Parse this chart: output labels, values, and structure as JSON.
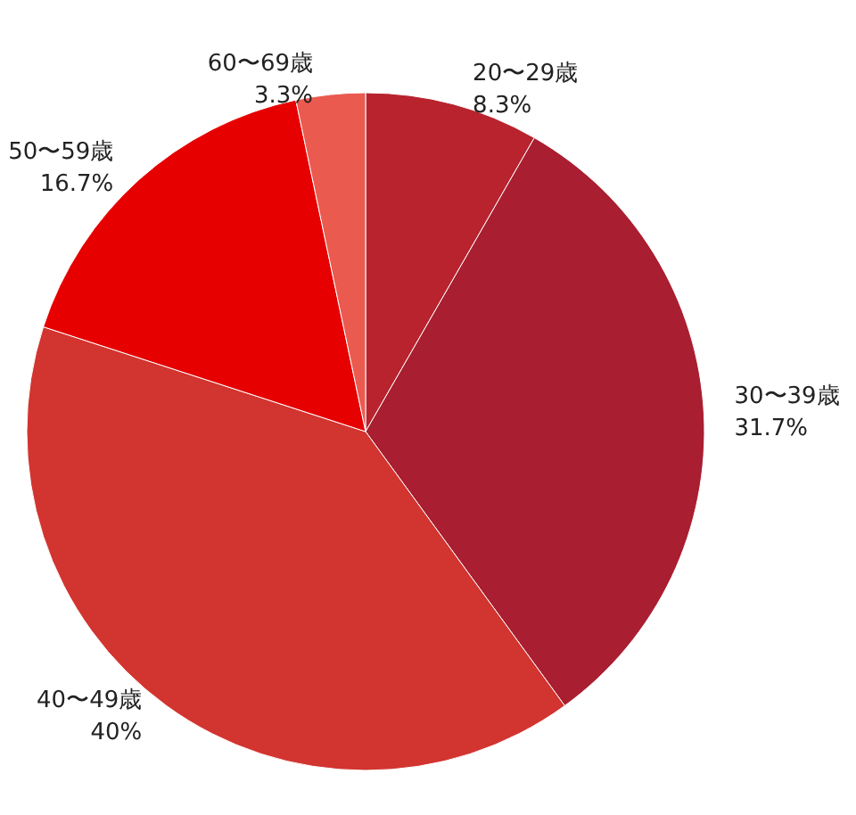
{
  "chart_data": {
    "type": "pie",
    "categories": [
      "20〜29歳",
      "30〜39歳",
      "40〜49歳",
      "50〜59歳",
      "60〜69歳"
    ],
    "values": [
      8.3,
      31.7,
      40,
      16.7,
      3.3
    ],
    "value_labels": [
      "8.3%",
      "31.7%",
      "40%",
      "16.7%",
      "3.3%"
    ],
    "colors": [
      "#b8232e",
      "#a91e30",
      "#d2342f",
      "#e60000",
      "#eb5a4f"
    ],
    "legend": false
  }
}
